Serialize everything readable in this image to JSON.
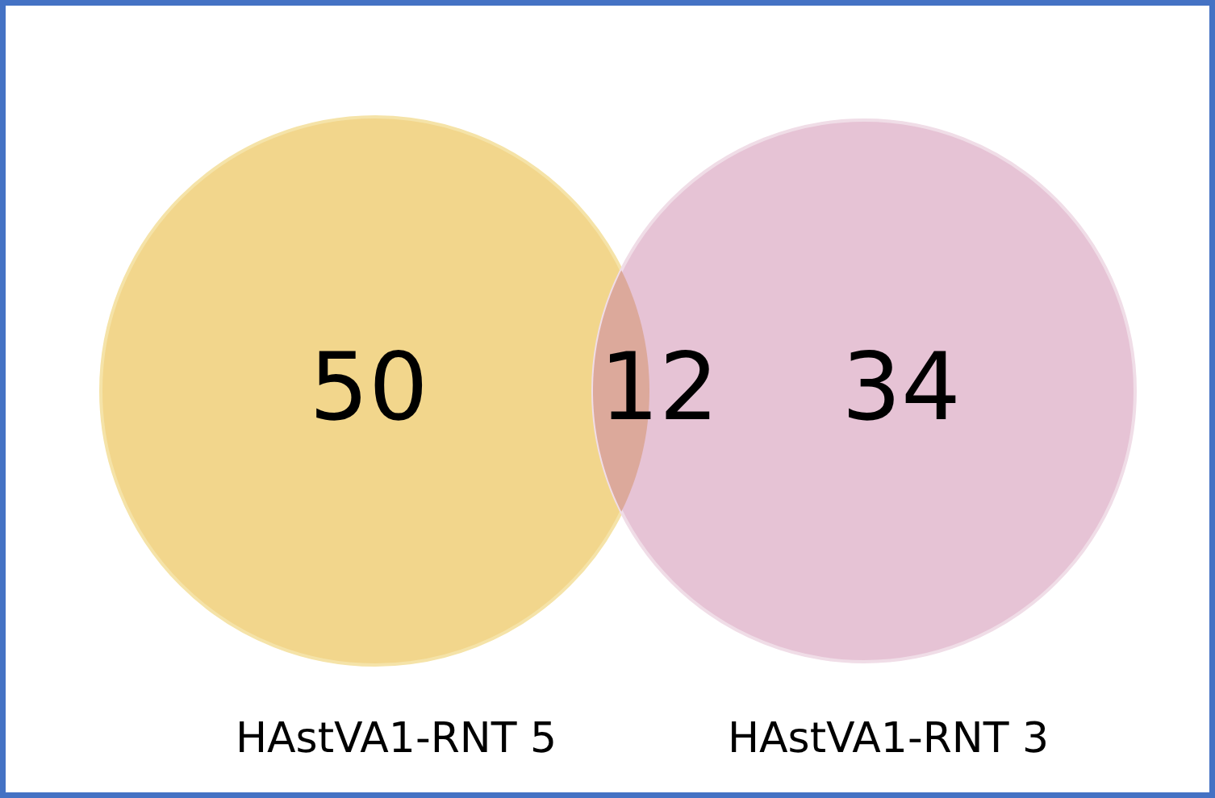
{
  "chart_data": {
    "type": "other",
    "categories": [
      "HAstVA1-RNT 5",
      null,
      "HAstVA1-RNT 3"
    ],
    "values": [
      50,
      12,
      34
    ],
    "colors": [
      "#f2d68c",
      "#dca99b",
      "#e6c3d5"
    ],
    "data_labels": true
  }
}
